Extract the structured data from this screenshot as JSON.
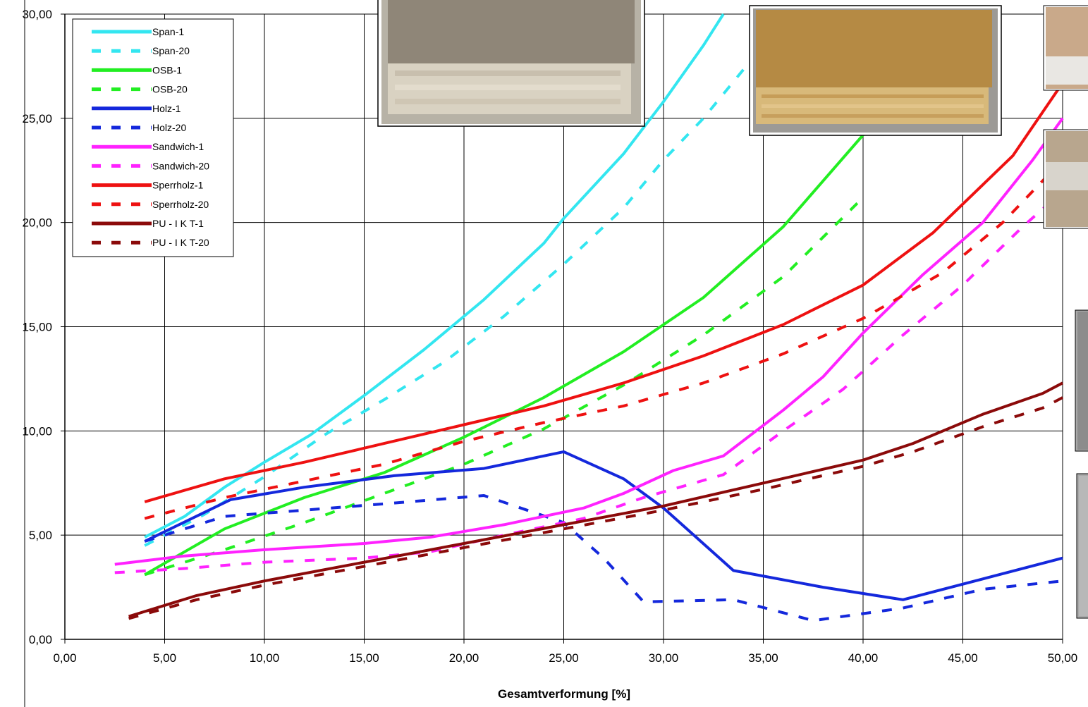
{
  "chart_data": {
    "type": "line",
    "title": "",
    "xlabel": "Gesamtverformung [%]",
    "ylabel": "",
    "xlim": [
      0,
      50
    ],
    "ylim": [
      0,
      30
    ],
    "xticks": [
      "0,00",
      "5,00",
      "10,00",
      "15,00",
      "20,00",
      "25,00",
      "30,00",
      "35,00",
      "40,00",
      "45,00",
      "50,00"
    ],
    "yticks": [
      "0,00",
      "5,00",
      "10,00",
      "15,00",
      "20,00",
      "25,00",
      "30,00"
    ],
    "grid": true,
    "legend_position": "top-left",
    "series": [
      {
        "name": "Span-1",
        "color": "#33e6f0",
        "dash": "solid",
        "points": [
          [
            4,
            4.9
          ],
          [
            6,
            5.9
          ],
          [
            8,
            7.3
          ],
          [
            10,
            8.5
          ],
          [
            12.3,
            9.8
          ],
          [
            15,
            11.7
          ],
          [
            18,
            13.9
          ],
          [
            21,
            16.3
          ],
          [
            24,
            19.0
          ],
          [
            25,
            20.2
          ],
          [
            28,
            23.3
          ],
          [
            30,
            25.8
          ],
          [
            32,
            28.5
          ],
          [
            33,
            30.0
          ]
        ]
      },
      {
        "name": "Span-20",
        "color": "#33e6f0",
        "dash": "dashed",
        "points": [
          [
            4,
            4.5
          ],
          [
            7,
            6.0
          ],
          [
            10,
            7.8
          ],
          [
            13,
            9.8
          ],
          [
            16,
            11.5
          ],
          [
            19,
            13.3
          ],
          [
            22,
            15.5
          ],
          [
            25,
            18.0
          ],
          [
            28,
            20.7
          ],
          [
            30,
            23.0
          ],
          [
            32,
            25.0
          ],
          [
            35,
            28.5
          ]
        ]
      },
      {
        "name": "OSB-1",
        "color": "#22ee22",
        "dash": "solid",
        "points": [
          [
            4,
            3.1
          ],
          [
            6,
            4.2
          ],
          [
            8,
            5.3
          ],
          [
            12,
            6.8
          ],
          [
            16,
            8.0
          ],
          [
            20,
            9.7
          ],
          [
            24,
            11.6
          ],
          [
            28,
            13.8
          ],
          [
            32,
            16.4
          ],
          [
            36,
            19.8
          ],
          [
            40,
            24.2
          ],
          [
            42,
            26.5
          ]
        ]
      },
      {
        "name": "OSB-20",
        "color": "#22ee22",
        "dash": "dashed",
        "points": [
          [
            4,
            3.1
          ],
          [
            8,
            4.3
          ],
          [
            12,
            5.6
          ],
          [
            16,
            7.0
          ],
          [
            20,
            8.4
          ],
          [
            24,
            10.1
          ],
          [
            28,
            12.2
          ],
          [
            32,
            14.6
          ],
          [
            36,
            17.4
          ],
          [
            40,
            21.2
          ]
        ]
      },
      {
        "name": "Holz-1",
        "color": "#1428dc",
        "dash": "solid",
        "points": [
          [
            4,
            4.7
          ],
          [
            8.3,
            6.7
          ],
          [
            12,
            7.3
          ],
          [
            16.5,
            7.85
          ],
          [
            21,
            8.2
          ],
          [
            25,
            9.0
          ],
          [
            28,
            7.7
          ],
          [
            30,
            6.3
          ],
          [
            33.5,
            3.3
          ],
          [
            38,
            2.5
          ],
          [
            42,
            1.9
          ],
          [
            46,
            2.9
          ],
          [
            50,
            3.9
          ]
        ]
      },
      {
        "name": "Holz-20",
        "color": "#1428dc",
        "dash": "dashed",
        "points": [
          [
            4,
            4.7
          ],
          [
            8,
            5.9
          ],
          [
            12,
            6.2
          ],
          [
            16,
            6.5
          ],
          [
            21,
            6.9
          ],
          [
            25,
            5.6
          ],
          [
            27,
            3.9
          ],
          [
            29,
            1.8
          ],
          [
            33.5,
            1.9
          ],
          [
            37.5,
            0.9
          ],
          [
            42,
            1.5
          ],
          [
            46,
            2.4
          ],
          [
            50,
            2.8
          ]
        ]
      },
      {
        "name": "Sandwich-1",
        "color": "#ff22ff",
        "dash": "solid",
        "points": [
          [
            2.5,
            3.6
          ],
          [
            6,
            4.0
          ],
          [
            10,
            4.3
          ],
          [
            15,
            4.6
          ],
          [
            18.3,
            4.9
          ],
          [
            22,
            5.5
          ],
          [
            26,
            6.3
          ],
          [
            28,
            7.0
          ],
          [
            30.5,
            8.1
          ],
          [
            33,
            8.8
          ],
          [
            36,
            11.0
          ],
          [
            38,
            12.6
          ],
          [
            40,
            14.7
          ],
          [
            43,
            17.5
          ],
          [
            46,
            20.0
          ],
          [
            48.5,
            23.0
          ],
          [
            50,
            25.0
          ]
        ]
      },
      {
        "name": "Sandwich-20",
        "color": "#ff22ff",
        "dash": "dashed",
        "points": [
          [
            2.5,
            3.2
          ],
          [
            6,
            3.4
          ],
          [
            10,
            3.7
          ],
          [
            15,
            3.9
          ],
          [
            18.3,
            4.2
          ],
          [
            22,
            5.0
          ],
          [
            26,
            5.8
          ],
          [
            29,
            6.8
          ],
          [
            33,
            7.9
          ],
          [
            36,
            10.0
          ],
          [
            39,
            12.0
          ],
          [
            42,
            14.6
          ],
          [
            45,
            17.0
          ],
          [
            48,
            19.8
          ],
          [
            50,
            21.5
          ]
        ]
      },
      {
        "name": "Sperrholz-1",
        "color": "#ee1111",
        "dash": "solid",
        "points": [
          [
            4,
            6.6
          ],
          [
            8,
            7.7
          ],
          [
            12,
            8.5
          ],
          [
            16,
            9.4
          ],
          [
            20,
            10.3
          ],
          [
            24,
            11.2
          ],
          [
            28,
            12.3
          ],
          [
            32,
            13.6
          ],
          [
            36,
            15.1
          ],
          [
            40,
            17.0
          ],
          [
            43.5,
            19.5
          ],
          [
            47.5,
            23.2
          ],
          [
            50,
            26.7
          ]
        ]
      },
      {
        "name": "Sperrholz-20",
        "color": "#ee1111",
        "dash": "dashed",
        "points": [
          [
            4,
            5.8
          ],
          [
            8,
            6.8
          ],
          [
            12,
            7.6
          ],
          [
            16,
            8.4
          ],
          [
            20,
            9.5
          ],
          [
            24,
            10.4
          ],
          [
            28,
            11.2
          ],
          [
            32,
            12.3
          ],
          [
            36,
            13.7
          ],
          [
            40,
            15.4
          ],
          [
            44,
            17.6
          ],
          [
            47,
            20.0
          ],
          [
            50,
            23.0
          ]
        ]
      },
      {
        "name": "PU - I K T-1",
        "color": "#8b0a0a",
        "dash": "solid",
        "points": [
          [
            3.2,
            1.1
          ],
          [
            6.6,
            2.1
          ],
          [
            10,
            2.8
          ],
          [
            15,
            3.7
          ],
          [
            20,
            4.6
          ],
          [
            25,
            5.5
          ],
          [
            30,
            6.4
          ],
          [
            35,
            7.5
          ],
          [
            40,
            8.6
          ],
          [
            42.5,
            9.4
          ],
          [
            46,
            10.8
          ],
          [
            49,
            11.8
          ],
          [
            50,
            12.3
          ]
        ]
      },
      {
        "name": "PU - I K T-20",
        "color": "#8b0a0a",
        "dash": "dashed",
        "points": [
          [
            3.2,
            1.0
          ],
          [
            6.6,
            1.9
          ],
          [
            10,
            2.6
          ],
          [
            15,
            3.5
          ],
          [
            20,
            4.4
          ],
          [
            25,
            5.3
          ],
          [
            30,
            6.2
          ],
          [
            35,
            7.2
          ],
          [
            40,
            8.3
          ],
          [
            42.5,
            9.0
          ],
          [
            46,
            10.2
          ],
          [
            49,
            11.1
          ],
          [
            50,
            11.6
          ]
        ]
      }
    ]
  }
}
